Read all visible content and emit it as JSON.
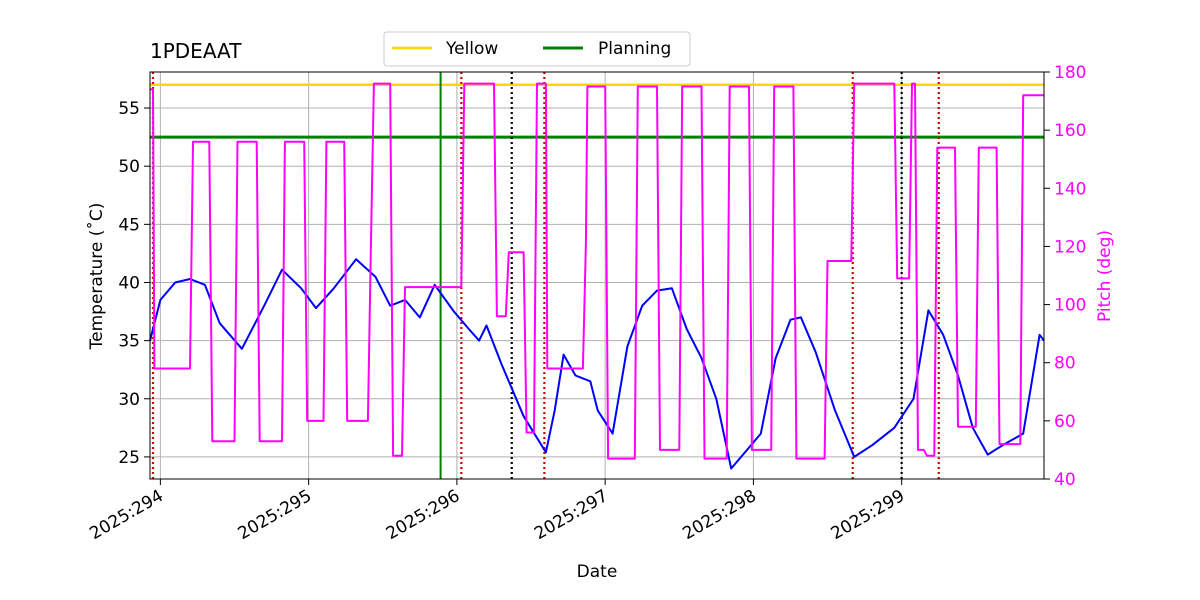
{
  "chart_data": {
    "type": "line",
    "title": "1PDEAAT",
    "xlabel": "Date",
    "ylabel": "Temperature ($^\\circ$C)",
    "ylabel_display": "Temperature (˚C)",
    "y2label": "Pitch (deg)",
    "xlim": [
      293.93,
      299.96
    ],
    "ylim": [
      23.1,
      58.1
    ],
    "y2lim": [
      40,
      180
    ],
    "x_ticks": [
      294,
      295,
      296,
      297,
      298,
      299
    ],
    "x_tick_labels": [
      "2025:294",
      "2025:295",
      "2025:296",
      "2025:297",
      "2025:298",
      "2025:299"
    ],
    "y_ticks": [
      25,
      30,
      35,
      40,
      45,
      50,
      55
    ],
    "y2_ticks": [
      40,
      60,
      80,
      100,
      120,
      140,
      160,
      180
    ],
    "grid": true,
    "legend": {
      "placement": "top-center",
      "entries": [
        {
          "label": "Yellow",
          "color": "#ffd700"
        },
        {
          "label": "Planning",
          "color": "#008000"
        }
      ]
    },
    "limits": {
      "yellow": 57.0,
      "planning": 52.5
    },
    "planning_vline_x": 295.89,
    "red_vlines_x": [
      293.95,
      296.03,
      296.59,
      298.67,
      299.25
    ],
    "black_vlines_x": [
      296.37,
      299.0
    ],
    "series": [
      {
        "name": "1PDEAAT",
        "axis": "left",
        "color": "#0000ff",
        "points": [
          [
            293.93,
            35.0
          ],
          [
            294.0,
            38.5
          ],
          [
            294.1,
            40.0
          ],
          [
            294.2,
            40.3
          ],
          [
            294.3,
            39.8
          ],
          [
            294.4,
            36.5
          ],
          [
            294.55,
            34.3
          ],
          [
            294.7,
            38.0
          ],
          [
            294.82,
            41.1
          ],
          [
            294.95,
            39.5
          ],
          [
            295.05,
            37.8
          ],
          [
            295.17,
            39.5
          ],
          [
            295.32,
            42.0
          ],
          [
            295.45,
            40.5
          ],
          [
            295.55,
            38.0
          ],
          [
            295.65,
            38.5
          ],
          [
            295.75,
            37.0
          ],
          [
            295.85,
            39.8
          ],
          [
            295.98,
            37.5
          ],
          [
            296.08,
            36.0
          ],
          [
            296.15,
            35.0
          ],
          [
            296.2,
            36.3
          ],
          [
            296.3,
            33.0
          ],
          [
            296.45,
            28.5
          ],
          [
            296.6,
            25.4
          ],
          [
            296.66,
            29.0
          ],
          [
            296.72,
            33.8
          ],
          [
            296.8,
            32.0
          ],
          [
            296.9,
            31.5
          ],
          [
            296.95,
            29.0
          ],
          [
            297.05,
            27.0
          ],
          [
            297.15,
            34.5
          ],
          [
            297.25,
            38.0
          ],
          [
            297.35,
            39.3
          ],
          [
            297.45,
            39.5
          ],
          [
            297.55,
            36.0
          ],
          [
            297.65,
            33.5
          ],
          [
            297.75,
            30.0
          ],
          [
            297.85,
            24.0
          ],
          [
            297.95,
            25.5
          ],
          [
            298.05,
            27.0
          ],
          [
            298.15,
            33.5
          ],
          [
            298.25,
            36.8
          ],
          [
            298.32,
            37.0
          ],
          [
            298.42,
            34.0
          ],
          [
            298.55,
            29.0
          ],
          [
            298.68,
            25.0
          ],
          [
            298.8,
            26.0
          ],
          [
            298.95,
            27.5
          ],
          [
            299.08,
            30.0
          ],
          [
            299.18,
            37.6
          ],
          [
            299.28,
            35.5
          ],
          [
            299.38,
            32.0
          ],
          [
            299.48,
            27.5
          ],
          [
            299.58,
            25.2
          ],
          [
            299.68,
            26.0
          ],
          [
            299.82,
            27.0
          ],
          [
            299.93,
            35.5
          ],
          [
            299.96,
            35.0
          ]
        ]
      },
      {
        "name": "Pitch",
        "axis": "right",
        "color": "#ff00ff",
        "points": [
          [
            293.93,
            174
          ],
          [
            293.95,
            174
          ],
          [
            293.96,
            78
          ],
          [
            294.2,
            78
          ],
          [
            294.22,
            156
          ],
          [
            294.33,
            156
          ],
          [
            294.35,
            53
          ],
          [
            294.5,
            53
          ],
          [
            294.52,
            156
          ],
          [
            294.65,
            156
          ],
          [
            294.67,
            53
          ],
          [
            294.82,
            53
          ],
          [
            294.84,
            156
          ],
          [
            294.97,
            156
          ],
          [
            294.99,
            60
          ],
          [
            295.1,
            60
          ],
          [
            295.12,
            156
          ],
          [
            295.24,
            156
          ],
          [
            295.26,
            60
          ],
          [
            295.4,
            60
          ],
          [
            295.42,
            120
          ],
          [
            295.44,
            176
          ],
          [
            295.55,
            176
          ],
          [
            295.57,
            48
          ],
          [
            295.63,
            48
          ],
          [
            295.65,
            106
          ],
          [
            296.03,
            106
          ],
          [
            296.05,
            176
          ],
          [
            296.25,
            176
          ],
          [
            296.27,
            96
          ],
          [
            296.33,
            96
          ],
          [
            296.35,
            118
          ],
          [
            296.45,
            118
          ],
          [
            296.47,
            56
          ],
          [
            296.52,
            56
          ],
          [
            296.54,
            176
          ],
          [
            296.6,
            176
          ],
          [
            296.61,
            78
          ],
          [
            296.85,
            78
          ],
          [
            296.87,
            121
          ],
          [
            296.88,
            175
          ],
          [
            297.0,
            175
          ],
          [
            297.02,
            47
          ],
          [
            297.2,
            47
          ],
          [
            297.22,
            175
          ],
          [
            297.35,
            175
          ],
          [
            297.37,
            50
          ],
          [
            297.5,
            50
          ],
          [
            297.52,
            175
          ],
          [
            297.65,
            175
          ],
          [
            297.67,
            47
          ],
          [
            297.82,
            47
          ],
          [
            297.84,
            175
          ],
          [
            297.97,
            175
          ],
          [
            297.99,
            50
          ],
          [
            298.12,
            50
          ],
          [
            298.14,
            175
          ],
          [
            298.27,
            175
          ],
          [
            298.29,
            47
          ],
          [
            298.48,
            47
          ],
          [
            298.5,
            115
          ],
          [
            298.66,
            115
          ],
          [
            298.68,
            176
          ],
          [
            298.95,
            176
          ],
          [
            298.97,
            109
          ],
          [
            299.05,
            109
          ],
          [
            299.07,
            176
          ],
          [
            299.09,
            176
          ],
          [
            299.11,
            50
          ],
          [
            299.15,
            50
          ],
          [
            299.17,
            48
          ],
          [
            299.22,
            48
          ],
          [
            299.24,
            154
          ],
          [
            299.36,
            154
          ],
          [
            299.38,
            58
          ],
          [
            299.5,
            58
          ],
          [
            299.52,
            154
          ],
          [
            299.64,
            154
          ],
          [
            299.66,
            52
          ],
          [
            299.8,
            52
          ],
          [
            299.82,
            172
          ],
          [
            299.96,
            172
          ]
        ]
      }
    ]
  }
}
